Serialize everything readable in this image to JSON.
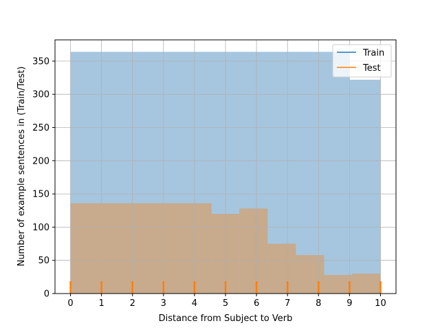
{
  "chart_data": {
    "type": "bar",
    "title": "",
    "xlabel": "Distance from Subject to Verb",
    "ylabel": "Number of example sentences in (Train/Test)",
    "xlim": [
      -0.5,
      10.5
    ],
    "ylim": [
      0,
      382
    ],
    "xticks": [
      0,
      1,
      2,
      3,
      4,
      5,
      6,
      7,
      8,
      9,
      10
    ],
    "yticks": [
      0,
      50,
      100,
      150,
      200,
      250,
      300,
      350
    ],
    "grid": true,
    "legend_position": "top-right",
    "series": [
      {
        "name": "Train",
        "color": "#1f77b4",
        "fill_color": "#a6c6df",
        "bins": [
          {
            "x0": 0,
            "x1": 9,
            "value": 364
          },
          {
            "x0": 9,
            "x1": 10,
            "value": 322
          }
        ]
      },
      {
        "name": "Test",
        "color": "#ff7f0e",
        "fill_color": "#c8aa8c",
        "bins": [
          {
            "x0": 0,
            "x1": 4.55,
            "value": 136
          },
          {
            "x0": 4.55,
            "x1": 5.45,
            "value": 120
          },
          {
            "x0": 5.45,
            "x1": 6.36,
            "value": 128
          },
          {
            "x0": 6.36,
            "x1": 7.27,
            "value": 75
          },
          {
            "x0": 7.27,
            "x1": 8.18,
            "value": 58
          },
          {
            "x0": 8.18,
            "x1": 9.09,
            "value": 28
          },
          {
            "x0": 9.09,
            "x1": 10,
            "value": 30
          }
        ],
        "rug": [
          0,
          1,
          2,
          3,
          4,
          5,
          6,
          7,
          8,
          9,
          10
        ]
      }
    ]
  }
}
